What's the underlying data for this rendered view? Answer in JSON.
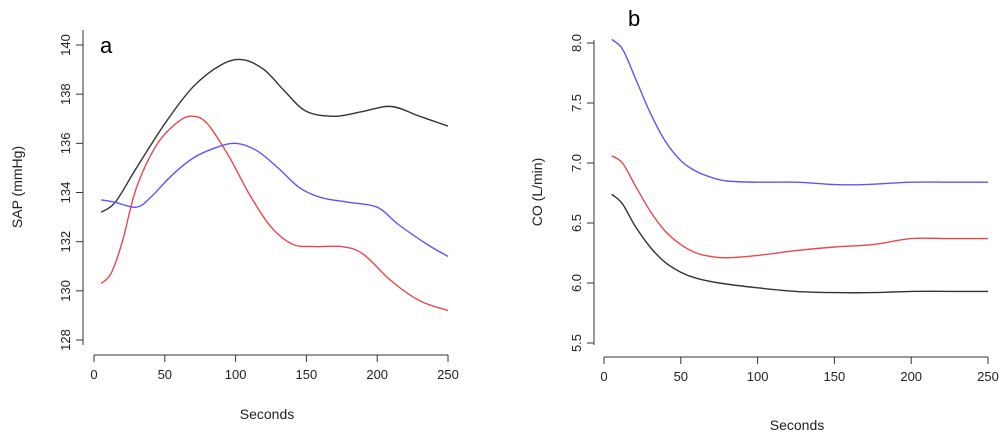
{
  "chart_data": [
    {
      "panel": "a",
      "type": "line",
      "xlabel": "Seconds",
      "ylabel": "SAP (mmHg)",
      "xlim": [
        0,
        250
      ],
      "ylim": [
        128,
        140
      ],
      "xticks": [
        0,
        50,
        100,
        150,
        200,
        250
      ],
      "yticks": [
        128,
        130,
        132,
        134,
        136,
        138,
        140
      ],
      "grid": false,
      "legend": "none",
      "series": [
        {
          "color": "#333333",
          "x": [
            5,
            15,
            30,
            50,
            70,
            90,
            105,
            120,
            135,
            150,
            170,
            190,
            210,
            230,
            250
          ],
          "y": [
            133.2,
            133.6,
            135.0,
            136.8,
            138.3,
            139.2,
            139.4,
            139.0,
            138.1,
            137.3,
            137.1,
            137.3,
            137.5,
            137.1,
            136.7
          ]
        },
        {
          "color": "#e8474d",
          "x": [
            5,
            12,
            20,
            30,
            45,
            60,
            70,
            80,
            95,
            110,
            125,
            140,
            155,
            175,
            190,
            210,
            230,
            250
          ],
          "y": [
            130.3,
            130.7,
            132.0,
            134.2,
            136.0,
            136.9,
            137.1,
            136.8,
            135.5,
            133.9,
            132.6,
            131.9,
            131.8,
            131.8,
            131.5,
            130.4,
            129.6,
            129.2
          ]
        },
        {
          "color": "#5f56f0",
          "x": [
            5,
            15,
            30,
            40,
            55,
            70,
            85,
            100,
            115,
            130,
            145,
            160,
            180,
            200,
            215,
            235,
            250
          ],
          "y": [
            133.7,
            133.6,
            133.4,
            133.8,
            134.7,
            135.4,
            135.8,
            136.0,
            135.7,
            135.0,
            134.2,
            133.8,
            133.6,
            133.4,
            132.7,
            131.9,
            131.4
          ]
        }
      ]
    },
    {
      "panel": "b",
      "type": "line",
      "xlabel": "Seconds",
      "ylabel": "CO (L/min)",
      "xlim": [
        0,
        250
      ],
      "ylim": [
        5.5,
        8.0
      ],
      "xticks": [
        0,
        50,
        100,
        150,
        200,
        250
      ],
      "yticks": [
        5.5,
        6.0,
        6.5,
        7.0,
        7.5,
        8.0
      ],
      "grid": false,
      "legend": "none",
      "series": [
        {
          "color": "#5f56f0",
          "x": [
            5,
            12,
            20,
            30,
            40,
            50,
            60,
            70,
            80,
            100,
            125,
            150,
            170,
            200,
            225,
            250
          ],
          "y": [
            8.03,
            7.95,
            7.72,
            7.42,
            7.18,
            7.02,
            6.93,
            6.88,
            6.85,
            6.84,
            6.84,
            6.82,
            6.82,
            6.84,
            6.84,
            6.84
          ]
        },
        {
          "color": "#e8474d",
          "x": [
            5,
            12,
            20,
            30,
            40,
            50,
            60,
            70,
            80,
            100,
            125,
            150,
            175,
            200,
            225,
            250
          ],
          "y": [
            7.06,
            7.0,
            6.82,
            6.6,
            6.43,
            6.32,
            6.25,
            6.22,
            6.21,
            6.23,
            6.27,
            6.3,
            6.32,
            6.37,
            6.37,
            6.37
          ]
        },
        {
          "color": "#333333",
          "x": [
            5,
            12,
            20,
            30,
            40,
            50,
            60,
            75,
            100,
            125,
            150,
            175,
            200,
            225,
            250
          ],
          "y": [
            6.74,
            6.66,
            6.48,
            6.3,
            6.17,
            6.09,
            6.04,
            6.0,
            5.96,
            5.93,
            5.92,
            5.92,
            5.93,
            5.93,
            5.93
          ]
        }
      ]
    }
  ]
}
